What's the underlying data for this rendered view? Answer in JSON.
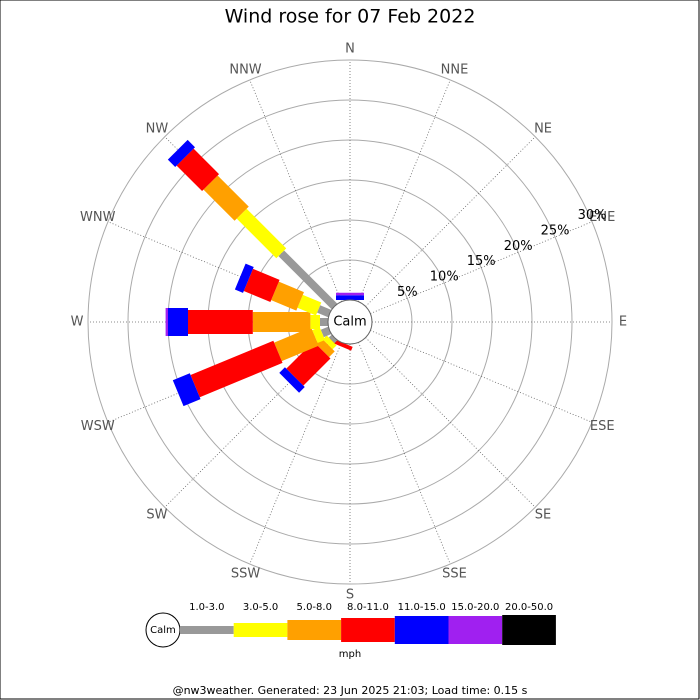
{
  "chart_data": {
    "type": "windrose",
    "title": "Wind rose for 07 Feb 2022",
    "categories": [
      "N",
      "NNE",
      "NE",
      "ENE",
      "E",
      "ESE",
      "SE",
      "SSE",
      "S",
      "SSW",
      "SW",
      "WSW",
      "W",
      "WNW",
      "NW",
      "NNW"
    ],
    "calm_label": "Calm",
    "rlim": [
      0,
      30
    ],
    "rticks": [
      {
        "value": 5,
        "label": "5%"
      },
      {
        "value": 10,
        "label": "10%"
      },
      {
        "value": 15,
        "label": "15%"
      },
      {
        "value": 20,
        "label": "20%"
      },
      {
        "value": 25,
        "label": "25%"
      },
      {
        "value": 30,
        "label": "30%"
      }
    ],
    "series": [
      {
        "name": "1.0-3.0",
        "color": "#999999",
        "values": [
          0,
          0,
          0,
          0,
          0,
          0,
          0,
          0,
          0,
          0,
          0.5,
          1,
          1,
          1.5,
          9.4,
          0
        ]
      },
      {
        "name": "3.0-5.0",
        "color": "#ffff00",
        "values": [
          0,
          0,
          0,
          0,
          0,
          0,
          0,
          0,
          0,
          0,
          0.7,
          1,
          1.2,
          2.5,
          7,
          0
        ]
      },
      {
        "name": "5.0-8.0",
        "color": "#ffa000",
        "values": [
          0,
          0,
          0,
          0,
          0,
          0,
          0,
          0,
          0,
          0,
          1,
          5,
          7.2,
          3.4,
          5.5,
          0
        ]
      },
      {
        "name": "8.0-11.0",
        "color": "#ff0000",
        "values": [
          0,
          0,
          0,
          0,
          0,
          0,
          0,
          0,
          0,
          0.5,
          4.8,
          11.2,
          8.1,
          3.6,
          4.5,
          0
        ]
      },
      {
        "name": "11.0-15.0",
        "color": "#0000ff",
        "values": [
          0.6,
          0,
          0,
          0,
          0,
          0,
          0,
          0,
          0,
          0,
          1,
          2.3,
          2.5,
          1.1,
          1.3,
          0
        ]
      },
      {
        "name": "15.0-20.0",
        "color": "#a020f0",
        "values": [
          0.3,
          0,
          0,
          0,
          0,
          0,
          0,
          0,
          0,
          0,
          0,
          0,
          0.3,
          0,
          0,
          0
        ]
      },
      {
        "name": "20.0-50.0",
        "color": "#000000",
        "values": [
          0,
          0,
          0,
          0,
          0,
          0,
          0,
          0,
          0,
          0,
          0,
          0,
          0,
          0,
          0,
          0
        ]
      }
    ],
    "legend_units": "mph"
  },
  "footer": "@nw3weather. Generated: 23 Jun 2025 21:03; Load time: 0.15 s"
}
